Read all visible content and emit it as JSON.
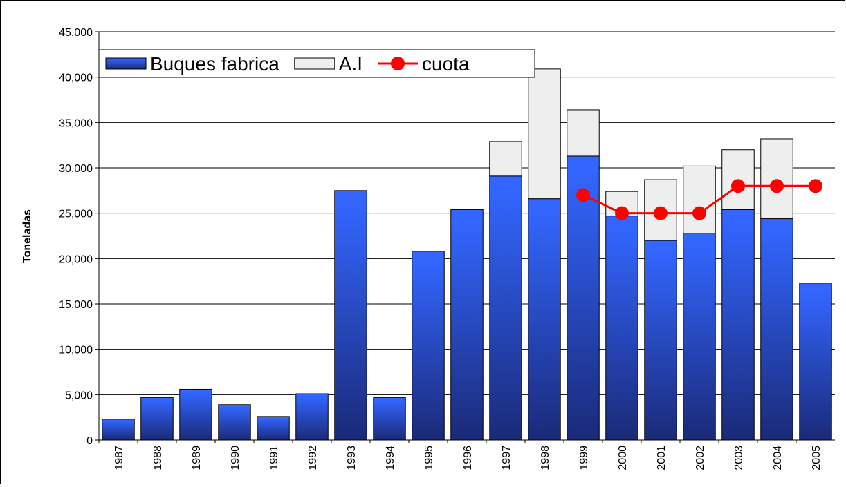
{
  "chart_data": {
    "type": "bar",
    "y_label": "Toneladas",
    "categories": [
      "1987",
      "1988",
      "1989",
      "1990",
      "1991",
      "1992",
      "1993",
      "1994",
      "1995",
      "1996",
      "1997",
      "1998",
      "1999",
      "2000",
      "2001",
      "2002",
      "2003",
      "2004",
      "2005"
    ],
    "series": [
      {
        "name": "Buques fabrica",
        "type": "bar",
        "color": "#3366ff",
        "values": [
          2300,
          4700,
          5600,
          3900,
          2600,
          5100,
          27500,
          4700,
          20800,
          25400,
          29100,
          26600,
          31300,
          24700,
          22000,
          22800,
          25400,
          24400,
          17300
        ]
      },
      {
        "name": "A.I",
        "type": "bar",
        "color": "#eeeeee",
        "values": [
          null,
          null,
          null,
          null,
          null,
          null,
          null,
          null,
          null,
          null,
          3800,
          14300,
          5100,
          2700,
          6700,
          7400,
          6600,
          8800,
          null
        ]
      },
      {
        "name": "cuota",
        "type": "line",
        "color": "#ff0000",
        "values": [
          null,
          null,
          null,
          null,
          null,
          null,
          null,
          null,
          null,
          null,
          null,
          null,
          27000,
          25000,
          25000,
          25000,
          28000,
          28000,
          28000
        ]
      }
    ],
    "stacked": true,
    "ylim": [
      0,
      45000
    ],
    "yticks": [
      0,
      {
        "value": 5000,
        "label": "5,000"
      },
      {
        "value": 10000,
        "label": "10,000"
      },
      {
        "value": 15000,
        "label": "15,000"
      },
      {
        "value": 20000,
        "label": "20,000"
      },
      {
        "value": 25000,
        "label": "25,000"
      },
      {
        "value": 30000,
        "label": "30,000"
      },
      {
        "value": 35000,
        "label": "35,000"
      },
      {
        "value": 40000,
        "label": "40,000"
      },
      {
        "value": 45000,
        "label": "45,000"
      }
    ],
    "grid": true,
    "legend": "top-left"
  }
}
